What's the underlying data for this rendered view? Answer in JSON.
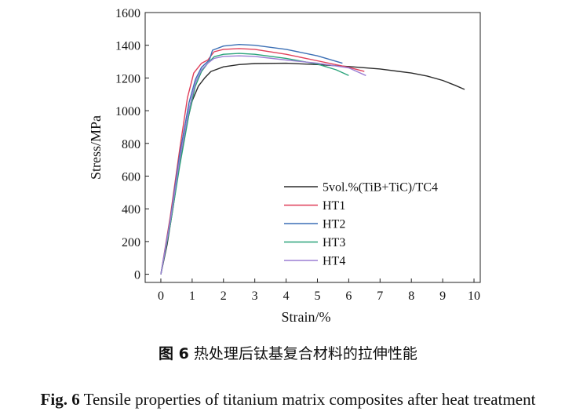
{
  "chart_data": {
    "type": "line",
    "title": "",
    "xlabel": "Strain/%",
    "ylabel": "Stress/MPa",
    "xlim": [
      -0.5,
      10.2
    ],
    "ylim": [
      -50,
      1600
    ],
    "xticks": [
      0,
      1,
      2,
      3,
      4,
      5,
      6,
      7,
      8,
      9,
      10
    ],
    "yticks": [
      0,
      200,
      400,
      600,
      800,
      1000,
      1200,
      1400,
      1600
    ],
    "grid": false,
    "legend_position": "lower-right",
    "series": [
      {
        "name": "5vol.%(TiB+TiC)/TC4",
        "color": "#2b2b2b",
        "points": [
          [
            0,
            0
          ],
          [
            0.2,
            180
          ],
          [
            0.4,
            420
          ],
          [
            0.6,
            680
          ],
          [
            0.8,
            900
          ],
          [
            1.0,
            1060
          ],
          [
            1.2,
            1150
          ],
          [
            1.4,
            1200
          ],
          [
            1.6,
            1240
          ],
          [
            2,
            1268
          ],
          [
            2.5,
            1282
          ],
          [
            3,
            1288
          ],
          [
            4,
            1290
          ],
          [
            5,
            1282
          ],
          [
            6,
            1270
          ],
          [
            7,
            1255
          ],
          [
            8,
            1230
          ],
          [
            8.5,
            1212
          ],
          [
            9,
            1185
          ],
          [
            9.4,
            1155
          ],
          [
            9.7,
            1130
          ]
        ]
      },
      {
        "name": "HT1",
        "color": "#e0405a",
        "points": [
          [
            0,
            0
          ],
          [
            0.3,
            350
          ],
          [
            0.6,
            760
          ],
          [
            0.85,
            1080
          ],
          [
            1.05,
            1230
          ],
          [
            1.3,
            1290
          ],
          [
            1.5,
            1310
          ],
          [
            1.7,
            1360
          ],
          [
            2,
            1375
          ],
          [
            2.5,
            1380
          ],
          [
            3,
            1375
          ],
          [
            4,
            1345
          ],
          [
            5,
            1305
          ],
          [
            6,
            1265
          ],
          [
            6.5,
            1240
          ]
        ]
      },
      {
        "name": "HT2",
        "color": "#3b6fb5",
        "points": [
          [
            0,
            0
          ],
          [
            0.3,
            330
          ],
          [
            0.6,
            730
          ],
          [
            0.9,
            1050
          ],
          [
            1.1,
            1190
          ],
          [
            1.3,
            1265
          ],
          [
            1.55,
            1310
          ],
          [
            1.65,
            1370
          ],
          [
            2,
            1395
          ],
          [
            2.5,
            1405
          ],
          [
            3,
            1400
          ],
          [
            4,
            1375
          ],
          [
            5,
            1335
          ],
          [
            5.8,
            1290
          ]
        ]
      },
      {
        "name": "HT3",
        "color": "#2aa37a",
        "points": [
          [
            0,
            0
          ],
          [
            0.3,
            300
          ],
          [
            0.6,
            660
          ],
          [
            0.9,
            980
          ],
          [
            1.1,
            1150
          ],
          [
            1.3,
            1240
          ],
          [
            1.5,
            1290
          ],
          [
            1.7,
            1330
          ],
          [
            2,
            1345
          ],
          [
            2.5,
            1350
          ],
          [
            3,
            1345
          ],
          [
            4,
            1320
          ],
          [
            5,
            1285
          ],
          [
            5.6,
            1250
          ],
          [
            6.0,
            1215
          ]
        ]
      },
      {
        "name": "HT4",
        "color": "#9b7fd4",
        "points": [
          [
            0,
            0
          ],
          [
            0.3,
            320
          ],
          [
            0.6,
            700
          ],
          [
            0.9,
            1010
          ],
          [
            1.1,
            1170
          ],
          [
            1.3,
            1250
          ],
          [
            1.5,
            1290
          ],
          [
            1.7,
            1320
          ],
          [
            2,
            1332
          ],
          [
            2.5,
            1335
          ],
          [
            3,
            1332
          ],
          [
            4,
            1310
          ],
          [
            5,
            1290
          ],
          [
            6,
            1262
          ],
          [
            6.55,
            1215
          ]
        ]
      }
    ]
  },
  "captions": {
    "cn_lead": "图 6",
    "cn_text": " 热处理后钛基复合材料的拉伸性能",
    "en_lead": "Fig. 6",
    "en_text": " Tensile properties of titanium matrix composites after heat treatment"
  }
}
